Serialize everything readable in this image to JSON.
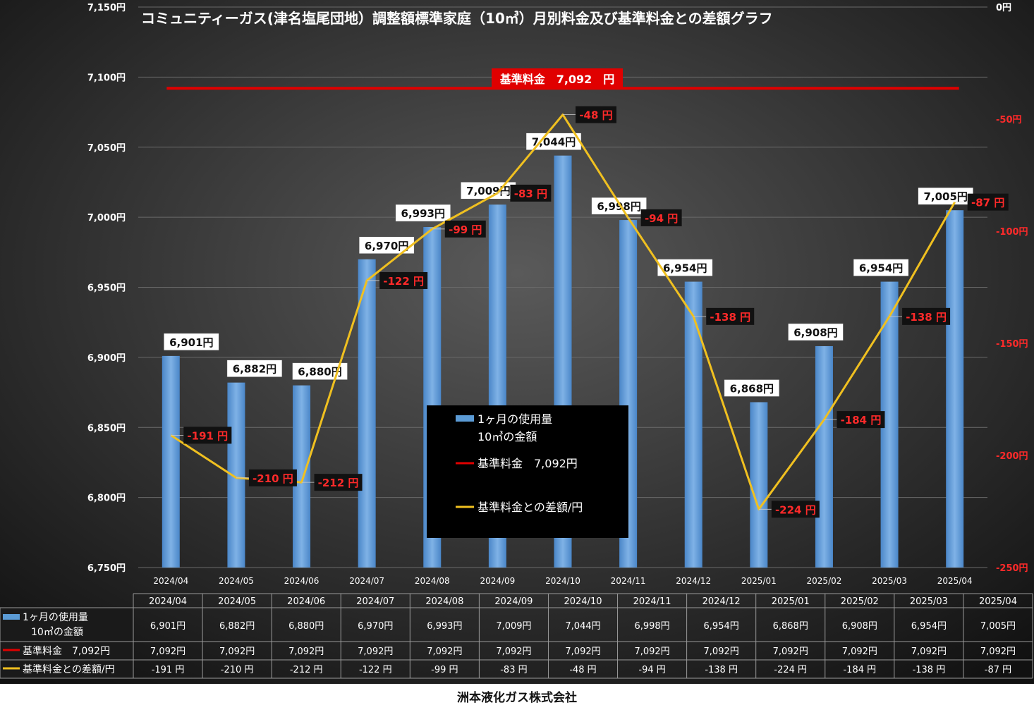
{
  "chart_data": {
    "type": "bar",
    "title": "コミュニティーガス(津名塩尾団地）調整額標準家庭（10㎥）月別料金及び基準料金との差額グラフ",
    "categories": [
      "2024/04",
      "2024/05",
      "2024/06",
      "2024/07",
      "2024/08",
      "2024/09",
      "2024/10",
      "2024/11",
      "2024/12",
      "2025/01",
      "2025/02",
      "2025/03",
      "2025/04"
    ],
    "ylim": [
      6750,
      7150
    ],
    "y_ticks": [
      "6,750円",
      "6,800円",
      "6,850円",
      "6,900円",
      "6,950円",
      "7,000円",
      "7,050円",
      "7,100円",
      "7,150円"
    ],
    "y2lim": [
      -250,
      0
    ],
    "y2_ticks": [
      "-250円",
      "-200円",
      "-150円",
      "-100円",
      "-50円",
      "0円"
    ],
    "grid": true,
    "legend_position": "center",
    "colors": {
      "bar": "#5b9bd5",
      "base": "#e00000",
      "diff": "#f0c020",
      "diff_label": "#ff2a2a"
    },
    "series": [
      {
        "name": "1ヶ月の使用量10㎥の金額",
        "type": "bar",
        "axis": "left",
        "values": [
          6901,
          6882,
          6880,
          6970,
          6993,
          7009,
          7044,
          6998,
          6954,
          6868,
          6908,
          6954,
          7005
        ],
        "labels": [
          "6,901円",
          "6,882円",
          "6,880円",
          "6,970円",
          "6,993円",
          "7,009円",
          "7,044円",
          "6,998円",
          "6,954円",
          "6,868円",
          "6,908円",
          "6,954円",
          "7,005円"
        ]
      },
      {
        "name": "基準料金　7,092円",
        "type": "line",
        "axis": "left",
        "values": [
          7092,
          7092,
          7092,
          7092,
          7092,
          7092,
          7092,
          7092,
          7092,
          7092,
          7092,
          7092,
          7092
        ],
        "labels": [
          "7,092円",
          "7,092円",
          "7,092円",
          "7,092円",
          "7,092円",
          "7,092円",
          "7,092円",
          "7,092円",
          "7,092円",
          "7,092円",
          "7,092円",
          "7,092円",
          "7,092円"
        ]
      },
      {
        "name": "基準料金との差額/円",
        "type": "line",
        "axis": "right",
        "values": [
          -191,
          -210,
          -212,
          -122,
          -99,
          -83,
          -48,
          -94,
          -138,
          -224,
          -184,
          -138,
          -87
        ],
        "labels": [
          "-191 円",
          "-210 円",
          "-212 円",
          "-122 円",
          "-99 円",
          "-83 円",
          "-48 円",
          "-94 円",
          "-138 円",
          "-224 円",
          "-184 円",
          "-138 円",
          "-87 円"
        ]
      }
    ],
    "base_annotation": "基準料金　7,092　円",
    "legend": {
      "bar_line1": "1ヶ月の使用量",
      "bar_line2": "10㎥の金額",
      "base": "基準料金　7,092円",
      "diff": "基準料金との差額/円"
    },
    "table": {
      "row_bar_line1": "1ヶ月の使用量",
      "row_bar_line2": "10㎥の金額",
      "row_base": "基準料金　7,092円",
      "row_diff": "基準料金との差額/円"
    }
  },
  "footer": "洲本液化ガス株式会社"
}
